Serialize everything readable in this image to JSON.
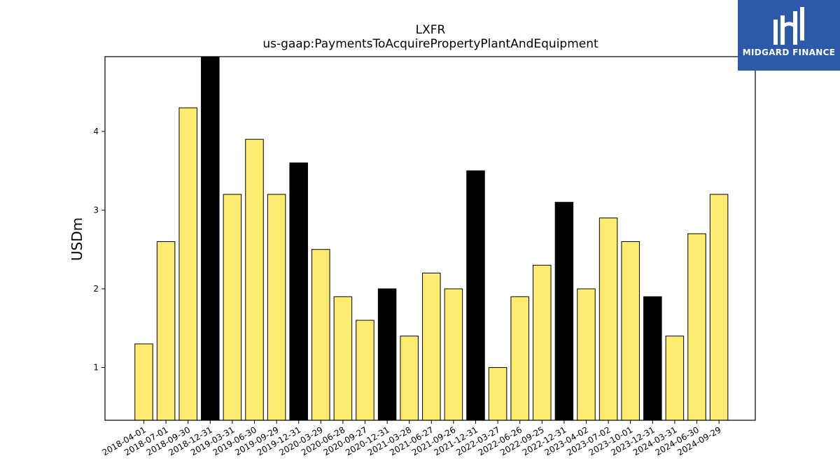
{
  "logo": {
    "text": "MIDGARD FINANCE",
    "icon": "midgard-logo-icon",
    "background": "#2d5aa8"
  },
  "chart_data": {
    "type": "bar",
    "title": "LXFR",
    "subtitle": "us-gaap:PaymentsToAcquirePropertyPlantAndEquipment",
    "ylabel": "USDm",
    "xlabel": "",
    "ylim": [
      0.33,
      4.95
    ],
    "yticks": [
      1,
      2,
      3,
      4
    ],
    "grid": false,
    "colors": {
      "quarter": "#ffeb70",
      "year_end": "#000000",
      "edge": "#000000"
    },
    "categories": [
      "2018-04-01",
      "2018-07-01",
      "2018-09-30",
      "2018-12-31",
      "2019-03-31",
      "2019-06-30",
      "2019-09-29",
      "2019-12-31",
      "2020-03-29",
      "2020-06-28",
      "2020-09-27",
      "2020-12-31",
      "2021-03-28",
      "2021-06-27",
      "2021-09-26",
      "2021-12-31",
      "2022-03-27",
      "2022-06-26",
      "2022-09-25",
      "2022-12-31",
      "2023-04-02",
      "2023-07-02",
      "2023-10-01",
      "2023-12-31",
      "2024-03-31",
      "2024-06-30",
      "2024-09-29"
    ],
    "values": [
      1.3,
      2.6,
      4.3,
      5.0,
      3.2,
      3.9,
      3.2,
      3.6,
      2.5,
      1.9,
      1.6,
      2.0,
      1.4,
      2.2,
      2.0,
      3.5,
      1.0,
      1.9,
      2.3,
      3.1,
      2.0,
      2.9,
      2.6,
      1.9,
      1.4,
      2.7,
      3.2
    ],
    "highlight": [
      false,
      false,
      false,
      true,
      false,
      false,
      false,
      true,
      false,
      false,
      false,
      true,
      false,
      false,
      false,
      true,
      false,
      false,
      false,
      true,
      false,
      false,
      false,
      true,
      false,
      false,
      false
    ]
  }
}
